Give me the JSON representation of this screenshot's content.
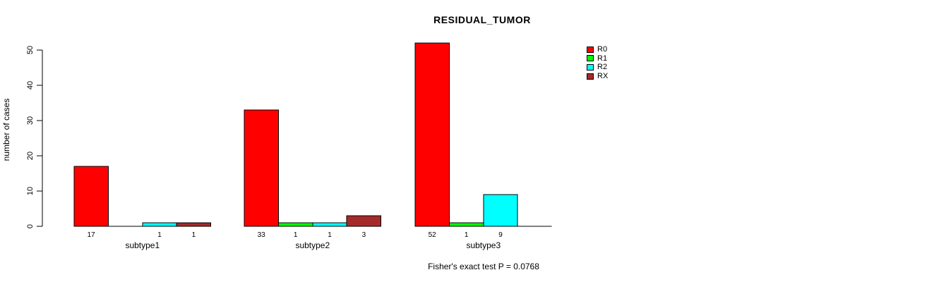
{
  "chart_data": {
    "type": "bar",
    "grouped": true,
    "title": "RESIDUAL_TUMOR",
    "xlabel": "",
    "ylabel": "number of cases",
    "ylim": [
      0,
      50
    ],
    "yticks": [
      0,
      10,
      20,
      30,
      40,
      50
    ],
    "grid": false,
    "legend_position": "top-right",
    "categories": [
      "subtype1",
      "subtype2",
      "subtype3"
    ],
    "series": [
      {
        "name": "R0",
        "color": "#FF0000",
        "values": [
          17,
          33,
          52
        ]
      },
      {
        "name": "R1",
        "color": "#00FF00",
        "values": [
          0,
          1,
          1
        ]
      },
      {
        "name": "R2",
        "color": "#00FFFF",
        "values": [
          1,
          1,
          9
        ]
      },
      {
        "name": "RX",
        "color": "#A52A2A",
        "values": [
          1,
          3,
          0
        ]
      }
    ],
    "show_value_labels": true,
    "value_labels_note": "value shown under each bar only when value > 0",
    "annotation": "Fisher's exact test P = 0.0768"
  }
}
